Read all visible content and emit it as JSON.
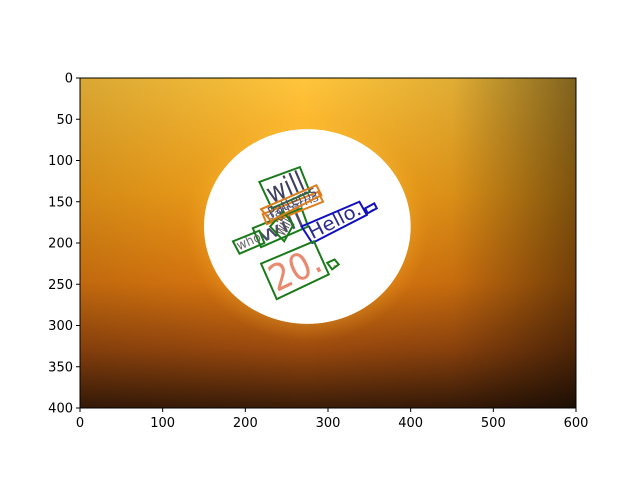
{
  "chart_data": {
    "type": "image",
    "title": "",
    "xlabel": "",
    "ylabel": "",
    "xlim": [
      0,
      600
    ],
    "ylim": [
      400,
      0
    ],
    "y_axis_inverted": true,
    "grid": false,
    "xticks": [
      0,
      100,
      200,
      300,
      400,
      500,
      600
    ],
    "yticks": [
      0,
      50,
      100,
      150,
      200,
      250,
      300,
      350,
      400
    ],
    "image": {
      "description_free": true,
      "background_colors": [
        "#ffc13a",
        "#f7a51a",
        "#e2780c",
        "#a0420a",
        "#3a1a05"
      ],
      "sun": {
        "center": [
          275,
          180
        ],
        "radius_x": 125,
        "radius_y": 118,
        "color": "#ffffff",
        "glow": "#fff27a"
      }
    },
    "annotations": [
      {
        "text": "will",
        "box_color": "#1a7a1a",
        "text_color": "#4a4a6a",
        "polygon": [
          [
            209,
            182
          ],
          [
            219,
            205
          ],
          [
            276,
            180
          ],
          [
            268,
            158
          ]
        ]
      },
      {
        "text": "will",
        "box_color": "#1a7a1a",
        "text_color": "#3e3e5e",
        "polygon": [
          [
            217,
            126
          ],
          [
            232,
            158
          ],
          [
            278,
            138
          ],
          [
            266,
            108
          ]
        ]
      },
      {
        "text": "patterns",
        "box_color": "#e07b1a",
        "text_color": "#555577",
        "polygon": [
          [
            221,
            165
          ],
          [
            226,
            177
          ],
          [
            294,
            150
          ],
          [
            288,
            138
          ]
        ]
      },
      {
        "text": "who",
        "box_color": "#1a7a1a",
        "text_color": "#6a6a6a",
        "polygon": [
          [
            185,
            198
          ],
          [
            193,
            213
          ],
          [
            223,
            200
          ],
          [
            217,
            185
          ]
        ]
      },
      {
        "text": "will",
        "box_color": "#1a7a1a",
        "text_color": "#555555",
        "polygon": [
          [
            230,
            180
          ],
          [
            247,
            198
          ],
          [
            258,
            178
          ],
          [
            246,
            162
          ]
        ]
      },
      {
        "text": "Patterns",
        "box_color": "#e07b1a",
        "text_color": "#4a4a6a",
        "polygon": [
          [
            219,
            159
          ],
          [
            231,
            173
          ],
          [
            292,
            142
          ],
          [
            286,
            130
          ]
        ]
      },
      {
        "text": "Hello.",
        "box_color": "#1010c0",
        "text_color": "#2a2a90",
        "polygon": [
          [
            268,
            180
          ],
          [
            281,
            200
          ],
          [
            347,
            166
          ],
          [
            338,
            150
          ]
        ]
      },
      {
        "text": ".",
        "box_color": "#1010c0",
        "text_color": "#2a2a90",
        "polygon": [
          [
            345,
            158
          ],
          [
            348,
            164
          ],
          [
            359,
            158
          ],
          [
            356,
            152
          ]
        ]
      },
      {
        "text": "20.",
        "box_color": "#1a7a1a",
        "text_color": "#e88a70",
        "polygon": [
          [
            219,
            225
          ],
          [
            238,
            268
          ],
          [
            301,
            238
          ],
          [
            283,
            198
          ]
        ]
      },
      {
        "text": ".",
        "box_color": "#1a7a1a",
        "text_color": "#e88a70",
        "polygon": [
          [
            299,
            224
          ],
          [
            305,
            232
          ],
          [
            313,
            226
          ],
          [
            308,
            220
          ]
        ]
      }
    ]
  }
}
